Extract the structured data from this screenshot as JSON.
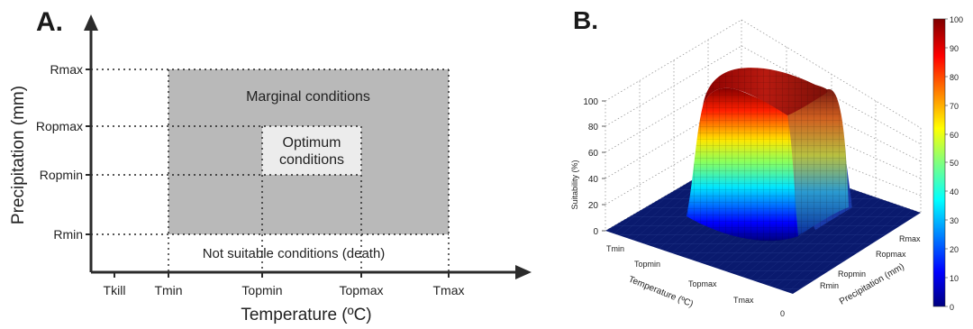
{
  "panel_a": {
    "letter": "A.",
    "y_axis_label": "Precipitation (mm)",
    "x_axis_label": "Temperature (ºC)",
    "y_ticks": [
      "Rmax",
      "Ropmax",
      "Ropmin",
      "Rmin"
    ],
    "x_ticks": [
      "Tkill",
      "Tmin",
      "Topmin",
      "Topmax",
      "Tmax"
    ],
    "marginal_label": "Marginal conditions",
    "optimum_label_line1": "Optimum",
    "optimum_label_line2": "conditions",
    "not_suitable_label": "Not suitable conditions (death)",
    "colors": {
      "marginal": "#b9b9b9",
      "optimum": "#ececec",
      "axis": "#2b2b2b"
    }
  },
  "panel_b": {
    "letter": "B.",
    "z_axis_label": "Suitability (%)",
    "x_axis_label": "Temperature (ºC)",
    "y_axis_label": "Precipitation (mm)",
    "z_ticks": [
      "0",
      "20",
      "40",
      "60",
      "80",
      "100"
    ],
    "temp_ticks": [
      "Tmin",
      "Topmin",
      "Topmax",
      "Tmax"
    ],
    "precip_ticks": [
      "Rmax",
      "Ropmax",
      "Ropmin",
      "Rmin"
    ],
    "corner_zero": "0",
    "colorbar": {
      "ticks": [
        "100",
        "90",
        "80",
        "70",
        "60",
        "50",
        "40",
        "30",
        "20",
        "10",
        "0"
      ],
      "colors": [
        "#00007f",
        "#0000ff",
        "#007fff",
        "#00ffff",
        "#7fff7f",
        "#ffff00",
        "#ff7f00",
        "#ff0000",
        "#7f0000"
      ]
    }
  }
}
